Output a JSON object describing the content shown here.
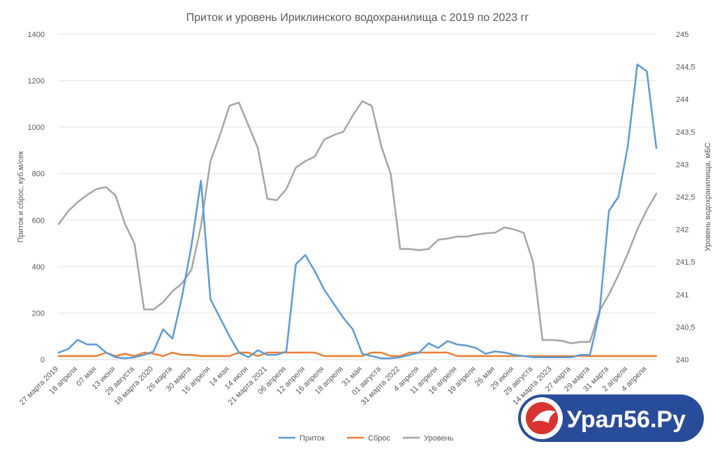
{
  "chart_data": {
    "type": "line",
    "title": "Приток и уровень Ириклинского водохранилища с 2019 по 2023 гг",
    "ylabel": "Приток и сброс, куб.м/сек",
    "y2label": "Уровень водохранилища, мБС",
    "ylim": [
      0,
      1400
    ],
    "y2lim": [
      240,
      245
    ],
    "yticks": [
      "0",
      "200",
      "400",
      "600",
      "800",
      "1000",
      "1200",
      "1400"
    ],
    "y2ticks": [
      "240",
      "240,5",
      "241",
      "241,5",
      "242",
      "242,5",
      "243",
      "243,5",
      "244",
      "244,5",
      "245"
    ],
    "grid": true,
    "legend_position": "bottom",
    "x_tick_labels": [
      {
        "i": 0,
        "label": "27 марта 2019"
      },
      {
        "i": 2,
        "label": "18 апреля"
      },
      {
        "i": 4,
        "label": "07 мая"
      },
      {
        "i": 6,
        "label": "13 июня"
      },
      {
        "i": 8,
        "label": "29 августа"
      },
      {
        "i": 10,
        "label": "18 марта 2020"
      },
      {
        "i": 12,
        "label": "26 марта"
      },
      {
        "i": 14,
        "label": "30 марта"
      },
      {
        "i": 16,
        "label": "16 апреля"
      },
      {
        "i": 18,
        "label": "14 мая"
      },
      {
        "i": 20,
        "label": "14 июля"
      },
      {
        "i": 22,
        "label": "21 марта 2021"
      },
      {
        "i": 24,
        "label": "06 апреля"
      },
      {
        "i": 26,
        "label": "12 апреля"
      },
      {
        "i": 28,
        "label": "16 апреля"
      },
      {
        "i": 30,
        "label": "18 апреля"
      },
      {
        "i": 32,
        "label": "31 мая"
      },
      {
        "i": 34,
        "label": "01 августа"
      },
      {
        "i": 36,
        "label": "31 марта 2022"
      },
      {
        "i": 38,
        "label": "4 апреля"
      },
      {
        "i": 40,
        "label": "11 апреля"
      },
      {
        "i": 42,
        "label": "16 апреля"
      },
      {
        "i": 44,
        "label": "19 апреля"
      },
      {
        "i": 46,
        "label": "26 мая"
      },
      {
        "i": 48,
        "label": "29 июня"
      },
      {
        "i": 50,
        "label": "29 августа"
      },
      {
        "i": 52,
        "label": "14 марта 2023"
      },
      {
        "i": 54,
        "label": "27 марта"
      },
      {
        "i": 56,
        "label": "29 марта"
      },
      {
        "i": 58,
        "label": "31 марта"
      },
      {
        "i": 60,
        "label": "2 апреля"
      },
      {
        "i": 62,
        "label": "4 апреля"
      }
    ],
    "series": [
      {
        "name": "Приток",
        "axis": "left",
        "color": "#5b9bd5",
        "values": [
          30,
          45,
          85,
          65,
          65,
          30,
          10,
          5,
          10,
          20,
          35,
          130,
          90,
          270,
          490,
          770,
          260,
          180,
          100,
          30,
          10,
          40,
          20,
          20,
          35,
          410,
          450,
          380,
          300,
          240,
          180,
          130,
          25,
          15,
          5,
          5,
          10,
          20,
          30,
          70,
          50,
          80,
          65,
          60,
          50,
          25,
          35,
          30,
          20,
          15,
          10,
          10,
          10,
          10,
          10,
          20,
          20,
          200,
          640,
          700,
          920,
          1270,
          1240,
          910
        ]
      },
      {
        "name": "Сброс",
        "axis": "left",
        "color": "#ed7d31",
        "values": [
          15,
          15,
          15,
          15,
          15,
          30,
          15,
          25,
          15,
          30,
          25,
          15,
          30,
          20,
          20,
          15,
          15,
          15,
          15,
          30,
          30,
          15,
          30,
          30,
          30,
          30,
          30,
          30,
          15,
          15,
          15,
          15,
          15,
          30,
          30,
          15,
          15,
          30,
          30,
          30,
          30,
          30,
          15,
          15,
          15,
          15,
          15,
          15,
          15,
          15,
          15,
          15,
          15,
          15,
          15,
          15,
          15,
          15,
          15,
          15,
          15,
          15,
          15,
          15
        ]
      },
      {
        "name": "Уровень",
        "axis": "right",
        "color": "#a5a5a5",
        "values": [
          242.08,
          242.28,
          242.42,
          242.53,
          242.62,
          242.65,
          242.52,
          242.08,
          241.78,
          240.77,
          240.77,
          240.88,
          241.05,
          241.17,
          241.38,
          242.05,
          243.05,
          243.45,
          243.9,
          243.95,
          243.6,
          243.25,
          242.47,
          242.45,
          242.62,
          242.95,
          243.05,
          243.12,
          243.38,
          243.45,
          243.5,
          243.75,
          243.97,
          243.9,
          243.28,
          242.85,
          241.7,
          241.7,
          241.68,
          241.7,
          241.84,
          241.86,
          241.89,
          241.89,
          241.92,
          241.94,
          241.95,
          242.03,
          242.0,
          241.95,
          241.5,
          240.3,
          240.3,
          240.29,
          240.25,
          240.27,
          240.27,
          240.75,
          241.0,
          241.3,
          241.63,
          242.0,
          242.3,
          242.55
        ]
      }
    ]
  },
  "watermark": {
    "text": "Урал56.Ру"
  }
}
